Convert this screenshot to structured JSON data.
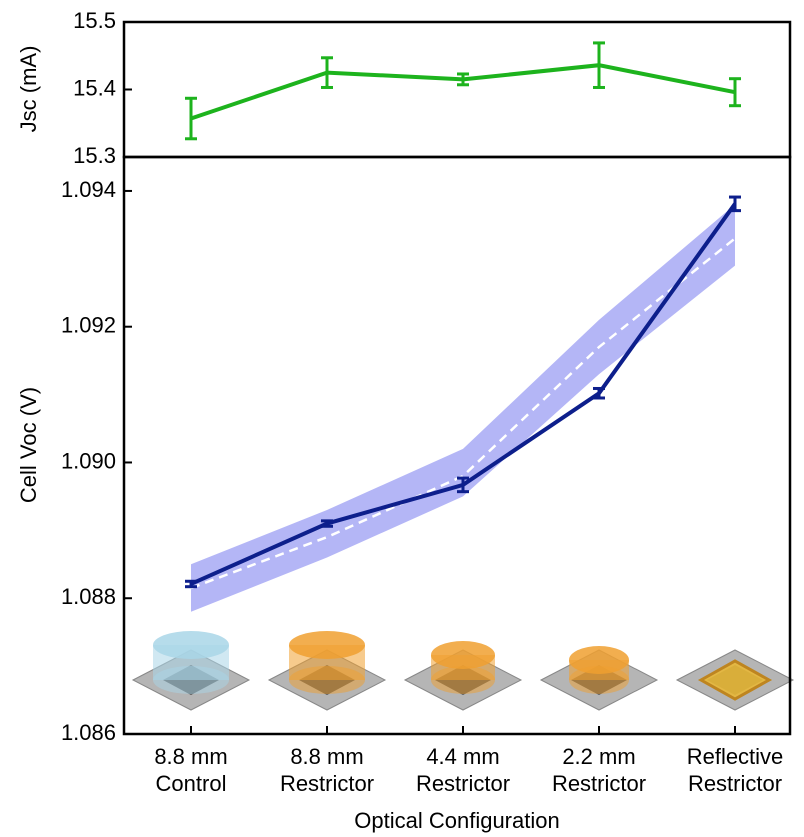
{
  "chart_data": [
    {
      "type": "line",
      "y_label": "Jsc (mA)",
      "ylim": [
        15.3,
        15.5
      ],
      "yticks": [
        15.3,
        15.4,
        15.5
      ],
      "series": [
        {
          "color": "#1db31d",
          "values": [
            15.357,
            15.425,
            15.415,
            15.436,
            15.396
          ],
          "errors": [
            0.03,
            0.022,
            0.008,
            0.033,
            0.02
          ]
        }
      ]
    },
    {
      "type": "line",
      "y_label": "Cell Voc (V)",
      "x_label": "Optical Configuration",
      "categories": [
        [
          "8.8 mm",
          "Control"
        ],
        [
          "8.8 mm",
          "Restrictor"
        ],
        [
          "4.4 mm",
          "Restrictor"
        ],
        [
          "2.2 mm",
          "Restrictor"
        ],
        [
          "Reflective",
          "Restrictor"
        ]
      ],
      "ylim": [
        1.086,
        1.0945
      ],
      "yticks": [
        1.086,
        1.088,
        {
          "value": 1.09,
          "label": "1.090"
        },
        1.092,
        1.094
      ],
      "band": {
        "color": "#b4b6f6",
        "lower": [
          1.0878,
          1.0886,
          1.0895,
          1.0913,
          1.0929
        ],
        "upper": [
          1.0885,
          1.0893,
          1.0902,
          1.0921,
          1.0938
        ]
      },
      "fit": {
        "color": "#ffffff",
        "values": [
          1.08815,
          1.0889,
          1.0898,
          1.0917,
          1.0933
        ]
      },
      "series": [
        {
          "color": "#0d1f8c",
          "values": [
            1.08821,
            1.0891,
            1.08967,
            1.09102,
            1.09381
          ],
          "errors": [
            4e-05,
            4e-05,
            0.0001,
            7e-05,
            0.0001
          ]
        }
      ]
    }
  ]
}
